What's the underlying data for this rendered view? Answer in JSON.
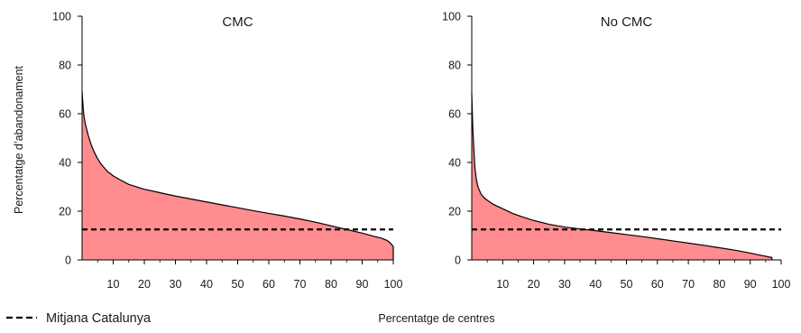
{
  "chart_data": [
    {
      "type": "area",
      "title": "CMC",
      "xlim": [
        0,
        100
      ],
      "ylim": [
        0,
        100
      ],
      "x_ticks": [
        10,
        20,
        30,
        40,
        50,
        60,
        70,
        80,
        90,
        100
      ],
      "y_ticks": [
        0,
        20,
        40,
        60,
        80,
        100
      ],
      "series": [
        {
          "x": [
            0,
            0.5,
            1,
            2,
            3,
            4,
            5,
            6,
            7,
            8,
            10,
            12,
            15,
            18,
            20,
            25,
            30,
            35,
            40,
            45,
            50,
            55,
            60,
            65,
            70,
            75,
            80,
            85,
            90,
            92,
            94,
            96,
            98,
            99,
            100
          ],
          "values": [
            69,
            60,
            56,
            51,
            47,
            44,
            41.5,
            39.5,
            38,
            36.5,
            34.5,
            33,
            31,
            29.8,
            29,
            27.6,
            26.2,
            25,
            23.8,
            22.6,
            21.4,
            20.2,
            19.1,
            18,
            16.8,
            15.5,
            14,
            12.5,
            11,
            10.3,
            9.6,
            9,
            8,
            7,
            5.5
          ]
        }
      ],
      "reference_line": {
        "name": "Mitjana Catalunya",
        "y": 12.5
      }
    },
    {
      "type": "area",
      "title": "No CMC",
      "xlim": [
        0,
        100
      ],
      "ylim": [
        0,
        100
      ],
      "x_ticks": [
        10,
        20,
        30,
        40,
        50,
        60,
        70,
        80,
        90,
        100
      ],
      "y_ticks": [
        0,
        20,
        40,
        60,
        80,
        100
      ],
      "series": [
        {
          "x": [
            0,
            0.3,
            0.7,
            1,
            1.5,
            2,
            2.5,
            3,
            4,
            5,
            7,
            10,
            13,
            16,
            20,
            25,
            30,
            35,
            40,
            45,
            50,
            55,
            60,
            65,
            70,
            75,
            80,
            85,
            90,
            93,
            95,
            96,
            97
          ],
          "values": [
            68,
            55,
            45,
            38,
            33,
            30,
            28.5,
            27,
            25.5,
            24.5,
            22.8,
            21,
            19.2,
            17.8,
            16.2,
            14.6,
            13.5,
            12.7,
            12,
            11.2,
            10.4,
            9.6,
            8.7,
            7.8,
            6.9,
            6,
            5,
            4,
            2.8,
            2,
            1.5,
            1.2,
            1
          ]
        }
      ],
      "reference_line": {
        "name": "Mitjana Catalunya",
        "y": 12.5
      }
    }
  ],
  "ylabel": "Percentatge d’abandonament",
  "xlabel": "Percentatge de centres",
  "legend": {
    "label": "Mitjana Catalunya",
    "placement": "bottom-left"
  },
  "colors": {
    "fill": "#ff8c8e",
    "outline": "#000000",
    "reference_line": "#000000"
  }
}
